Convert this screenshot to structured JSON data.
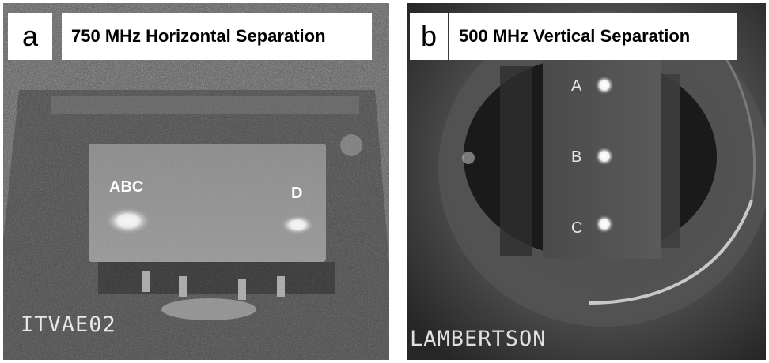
{
  "panel_a": {
    "letter": "a",
    "title": "750 MHz Horizontal Separation",
    "spot_labels": [
      "ABC",
      "D"
    ],
    "camera_label": "ITVAE02"
  },
  "panel_b": {
    "letter": "b",
    "title": "500 MHz Vertical Separation",
    "spot_labels": [
      "A",
      "B",
      "C"
    ],
    "camera_label": "LAMBERTSON"
  },
  "colors": {
    "background": "#ffffff",
    "label_box": "#ffffff"
  }
}
